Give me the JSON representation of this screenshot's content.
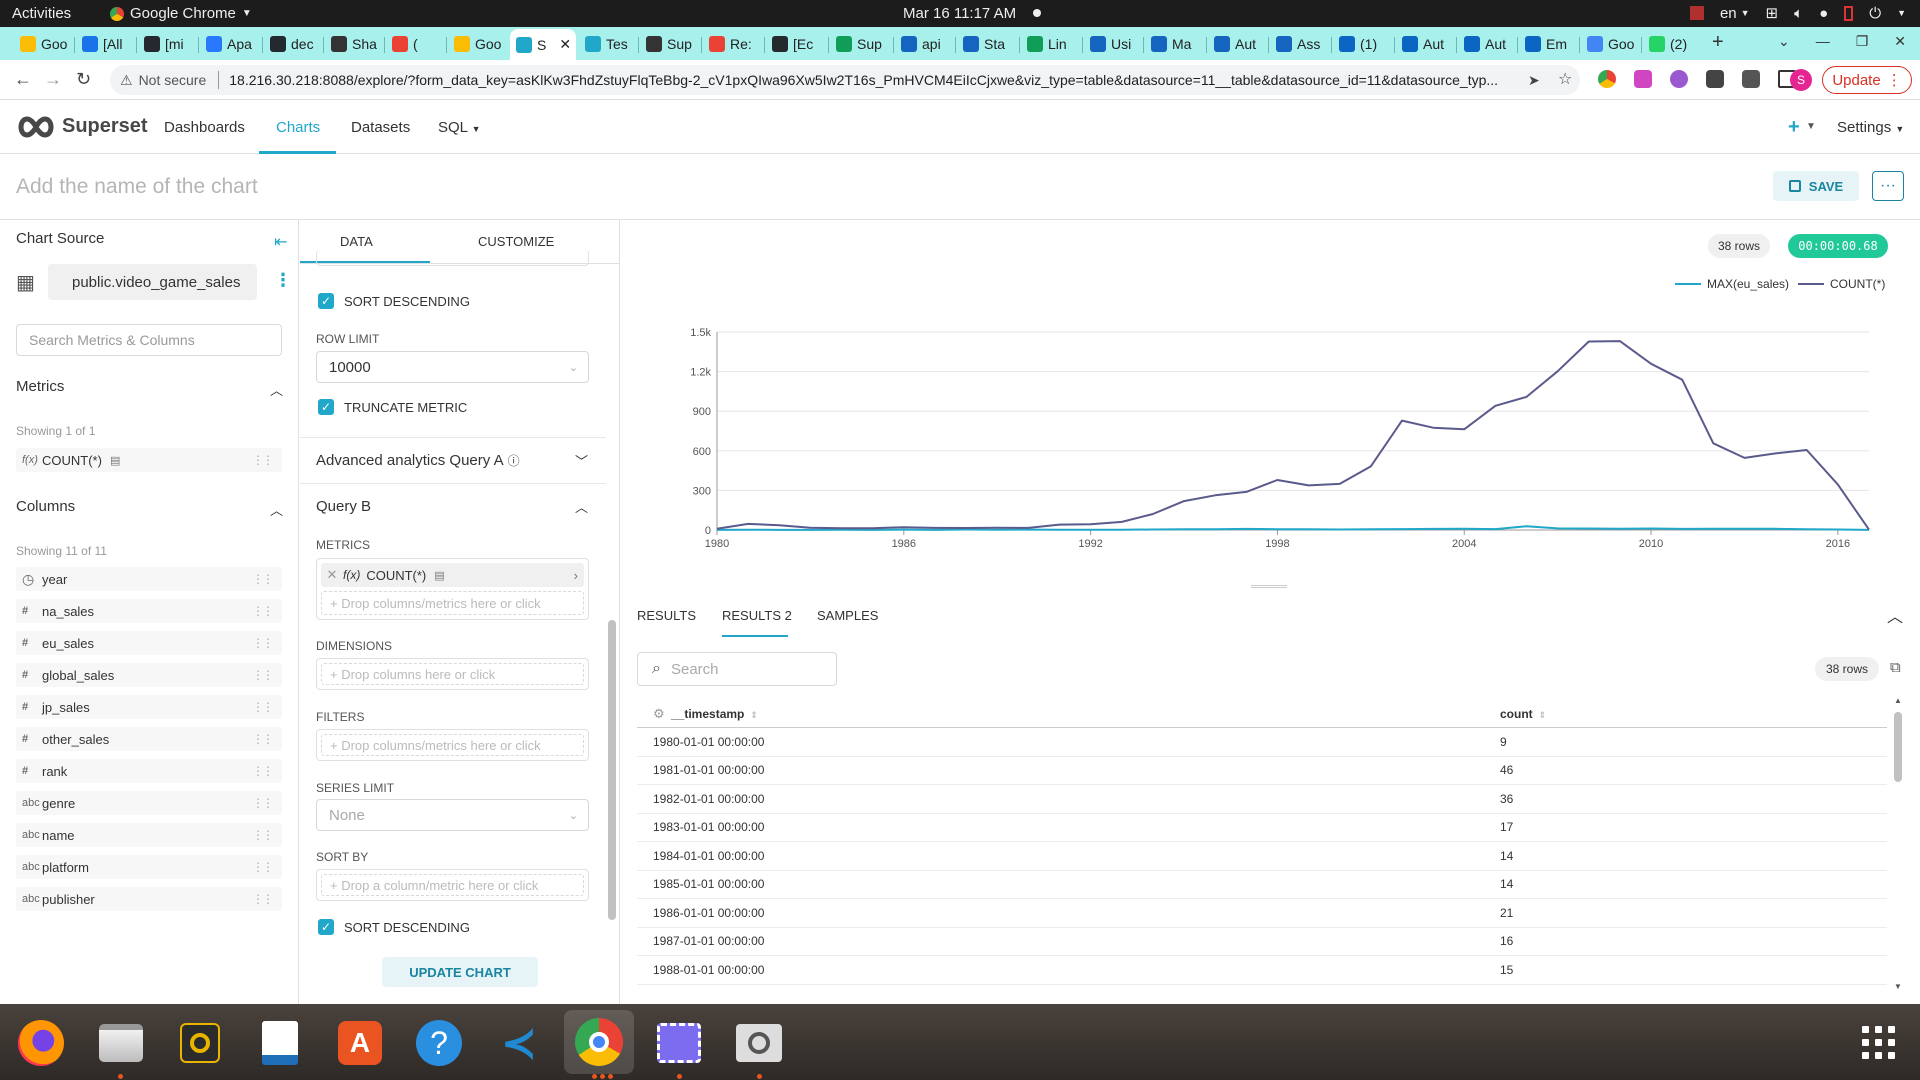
{
  "system_bar": {
    "activities": "Activities",
    "app_name": "Google Chrome",
    "clock": "Mar 16  11:17 AM",
    "lang": "en"
  },
  "tabs": [
    {
      "label": "Goo",
      "color": "#fbbc05"
    },
    {
      "label": "[All",
      "color": "#1a73e8"
    },
    {
      "label": "[mi",
      "color": "#24292f"
    },
    {
      "label": "Apa",
      "color": "#2979ff"
    },
    {
      "label": "dec",
      "color": "#24292f"
    },
    {
      "label": "Sha",
      "color": "#333333"
    },
    {
      "label": "(",
      "color": "#ea4335"
    },
    {
      "label": "Goo",
      "color": "#fbbc05"
    },
    {
      "label": "S",
      "color": "#20a7c9",
      "active": true
    },
    {
      "label": "Tes",
      "color": "#20a7c9"
    },
    {
      "label": "Sup",
      "color": "#333333"
    },
    {
      "label": "Re:",
      "color": "#ea4335"
    },
    {
      "label": "[Ec",
      "color": "#24292f"
    },
    {
      "label": "Sup",
      "color": "#0f9d58"
    },
    {
      "label": "api",
      "color": "#1565c0"
    },
    {
      "label": "Sta",
      "color": "#1565c0"
    },
    {
      "label": "Lin",
      "color": "#0f9d58"
    },
    {
      "label": "Usi",
      "color": "#1565c0"
    },
    {
      "label": "Ma",
      "color": "#1565c0"
    },
    {
      "label": "Aut",
      "color": "#1565c0"
    },
    {
      "label": "Ass",
      "color": "#1565c0"
    },
    {
      "label": "(1)",
      "color": "#0a66c2"
    },
    {
      "label": "Aut",
      "color": "#0a66c2"
    },
    {
      "label": "Aut",
      "color": "#0a66c2"
    },
    {
      "label": "Em",
      "color": "#0a66c2"
    },
    {
      "label": "Goo",
      "color": "#4285f4"
    },
    {
      "label": "(2)",
      "color": "#25d366"
    }
  ],
  "address_bar": {
    "security": "Not secure",
    "url": "18.216.30.218:8088/explore/?form_data_key=asKlKw3FhdZstuyFlqTeBbg-2_cV1pxQIwa96Xw5Iw2T16s_PmHVCM4EiIcCjxwe&viz_type=table&datasource=11__table&datasource_id=11&datasource_typ...",
    "update_label": "Update",
    "profile_initial": "S"
  },
  "superset_nav": {
    "brand": "Superset",
    "links": [
      "Dashboards",
      "Charts",
      "Datasets",
      "SQL"
    ],
    "settings": "Settings"
  },
  "chart_header": {
    "title_placeholder": "Add the name of the chart",
    "save_label": "SAVE"
  },
  "datasource_panel": {
    "heading": "Chart Source",
    "dataset": "public.video_game_sales",
    "search_placeholder": "Search Metrics & Columns",
    "metrics_heading": "Metrics",
    "metrics_showing": "Showing 1 of 1",
    "metrics": [
      {
        "icon": "f(x)",
        "name": "COUNT(*)"
      }
    ],
    "columns_heading": "Columns",
    "columns_showing": "Showing 11 of 11",
    "columns": [
      {
        "icon": "clock",
        "name": "year"
      },
      {
        "icon": "#",
        "name": "na_sales"
      },
      {
        "icon": "#",
        "name": "eu_sales"
      },
      {
        "icon": "#",
        "name": "global_sales"
      },
      {
        "icon": "#",
        "name": "jp_sales"
      },
      {
        "icon": "#",
        "name": "other_sales"
      },
      {
        "icon": "#",
        "name": "rank"
      },
      {
        "icon": "abc",
        "name": "genre"
      },
      {
        "icon": "abc",
        "name": "name"
      },
      {
        "icon": "abc",
        "name": "platform"
      },
      {
        "icon": "abc",
        "name": "publisher"
      }
    ]
  },
  "control_panel": {
    "tab_data": "DATA",
    "tab_customize": "CUSTOMIZE",
    "sort_descending_1": "SORT DESCENDING",
    "row_limit_label": "ROW LIMIT",
    "row_limit_value": "10000",
    "truncate_metric": "TRUNCATE METRIC",
    "section_query_a": "Advanced analytics Query A",
    "section_query_b": "Query B",
    "metrics_label": "METRICS",
    "metric_value": "COUNT(*)",
    "metric_drop_placeholder": "+ Drop columns/metrics here or click",
    "dimensions_label": "DIMENSIONS",
    "dimensions_placeholder": "+ Drop columns here or click",
    "filters_label": "FILTERS",
    "filters_placeholder": "+ Drop columns/metrics here or click",
    "series_limit_label": "SERIES LIMIT",
    "series_limit_value": "None",
    "sort_by_label": "SORT BY",
    "sort_by_placeholder": "+ Drop a column/metric here or click",
    "sort_descending_2": "SORT DESCENDING",
    "update_chart": "UPDATE CHART"
  },
  "chart_meta": {
    "rows_badge": "38 rows",
    "timer": "00:00:00.68"
  },
  "chart_data": {
    "type": "line",
    "x": [
      1980,
      1981,
      1982,
      1983,
      1984,
      1985,
      1986,
      1987,
      1988,
      1989,
      1990,
      1991,
      1992,
      1993,
      1994,
      1995,
      1996,
      1997,
      1998,
      1999,
      2000,
      2001,
      2002,
      2003,
      2004,
      2005,
      2006,
      2007,
      2008,
      2009,
      2010,
      2011,
      2012,
      2013,
      2014,
      2015,
      2016,
      2017
    ],
    "series": [
      {
        "name": "MAX(eu_sales)",
        "color": "#1fa8c9",
        "values": [
          1,
          2,
          1,
          1,
          2,
          1,
          3,
          1,
          4,
          2,
          3,
          2,
          2,
          2,
          4,
          5,
          6,
          8,
          6,
          5,
          4,
          5,
          7,
          8,
          9,
          7,
          29,
          12,
          11,
          9,
          11,
          8,
          9,
          10,
          9,
          6,
          4,
          1
        ]
      },
      {
        "name": "COUNT(*)",
        "color": "#5a5a8c",
        "values": [
          9,
          46,
          36,
          17,
          14,
          14,
          21,
          16,
          15,
          17,
          16,
          41,
          43,
          61,
          121,
          219,
          263,
          289,
          379,
          338,
          349,
          482,
          829,
          775,
          763,
          941,
          1008,
          1202,
          1428,
          1431,
          1259,
          1139,
          657,
          546,
          580,
          606,
          344,
          3
        ]
      }
    ],
    "ylim": [
      0,
      1500
    ],
    "yticks": [
      "0",
      "300",
      "600",
      "900",
      "1.2k",
      "1.5k"
    ],
    "xticks": [
      1980,
      1986,
      1992,
      1998,
      2004,
      2010,
      2016
    ],
    "legend": "top-right",
    "grid": true
  },
  "results": {
    "tabs": [
      "RESULTS",
      "RESULTS 2",
      "SAMPLES"
    ],
    "search_placeholder": "Search",
    "rows_badge": "38 rows",
    "col_timestamp": "__timestamp",
    "col_count": "count",
    "rows": [
      {
        "ts": "1980-01-01 00:00:00",
        "count": "9"
      },
      {
        "ts": "1981-01-01 00:00:00",
        "count": "46"
      },
      {
        "ts": "1982-01-01 00:00:00",
        "count": "36"
      },
      {
        "ts": "1983-01-01 00:00:00",
        "count": "17"
      },
      {
        "ts": "1984-01-01 00:00:00",
        "count": "14"
      },
      {
        "ts": "1985-01-01 00:00:00",
        "count": "14"
      },
      {
        "ts": "1986-01-01 00:00:00",
        "count": "21"
      },
      {
        "ts": "1987-01-01 00:00:00",
        "count": "16"
      },
      {
        "ts": "1988-01-01 00:00:00",
        "count": "15"
      }
    ]
  }
}
